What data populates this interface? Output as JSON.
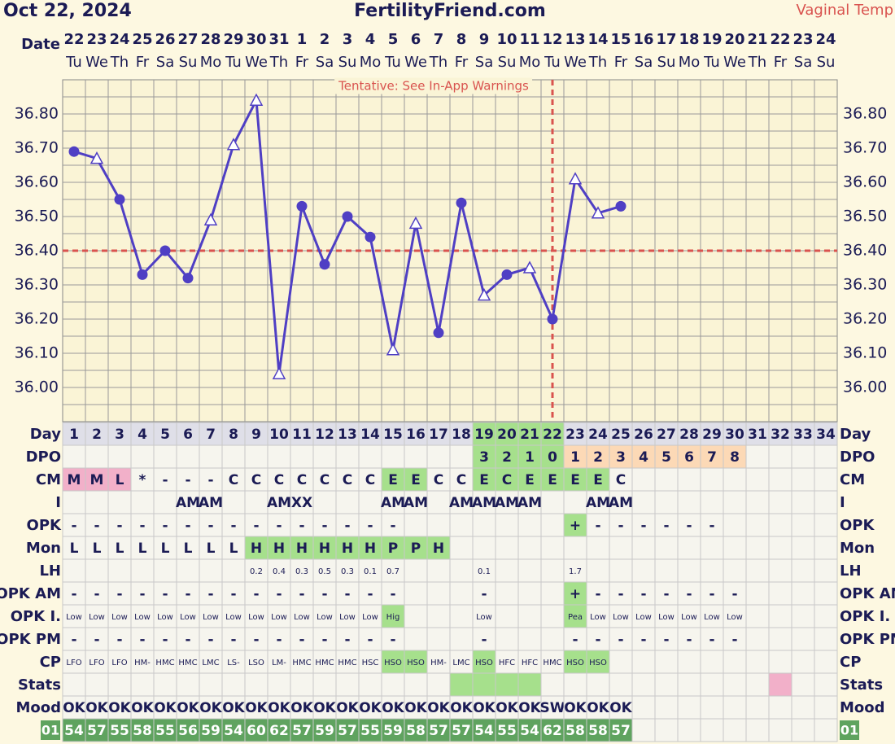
{
  "header": {
    "date": "Oct 22, 2024",
    "site": "FertilityFriend.com",
    "mode": "Vaginal Temp",
    "date_label": "Date"
  },
  "chart_data": {
    "type": "line",
    "annotation": "Tentative: See In-App Warnings",
    "categories": [
      "22",
      "23",
      "24",
      "25",
      "26",
      "27",
      "28",
      "29",
      "30",
      "31",
      "1",
      "2",
      "3",
      "4",
      "5",
      "6",
      "7",
      "8",
      "9",
      "10",
      "11",
      "12",
      "13",
      "14",
      "15",
      "16",
      "17",
      "18",
      "19",
      "20",
      "21",
      "22",
      "23",
      "24"
    ],
    "weekdays": [
      "Tu",
      "We",
      "Th",
      "Fr",
      "Sa",
      "Su",
      "Mo",
      "Tu",
      "We",
      "Th",
      "Fr",
      "Sa",
      "Su",
      "Mo",
      "Tu",
      "We",
      "Th",
      "Fr",
      "Sa",
      "Su",
      "Mo",
      "Tu",
      "We",
      "Th",
      "Fr",
      "Sa",
      "Su",
      "Mo",
      "Tu",
      "We",
      "Th",
      "Fr",
      "Sa",
      "Su"
    ],
    "series": [
      {
        "name": "Temperature",
        "color": "#4f3fc4",
        "values": [
          36.69,
          36.67,
          36.55,
          36.33,
          36.4,
          36.32,
          36.49,
          36.71,
          36.84,
          36.04,
          36.53,
          36.36,
          36.5,
          36.44,
          36.11,
          36.48,
          36.16,
          36.54,
          36.27,
          36.33,
          36.35,
          36.2,
          36.61,
          36.51,
          36.53,
          null,
          null,
          null,
          null,
          null,
          null,
          null,
          null,
          null
        ],
        "markers": [
          "circle",
          "triangle",
          "circle",
          "circle",
          "circle",
          "circle",
          "triangle",
          "triangle",
          "triangle",
          "triangle",
          "circle",
          "circle",
          "circle",
          "circle",
          "triangle",
          "triangle",
          "circle",
          "circle",
          "triangle",
          "circle",
          "triangle",
          "circle",
          "triangle",
          "triangle",
          "circle",
          null,
          null,
          null,
          null,
          null,
          null,
          null,
          null,
          null
        ]
      }
    ],
    "ylim": [
      35.9,
      36.9
    ],
    "yticks": [
      {
        "value": 36.0,
        "label": "36.00"
      },
      {
        "value": 36.1,
        "label": "36.10"
      },
      {
        "value": 36.2,
        "label": "36.20"
      },
      {
        "value": 36.3,
        "label": "36.30"
      },
      {
        "value": 36.4,
        "label": "36.40"
      },
      {
        "value": 36.5,
        "label": "36.50"
      },
      {
        "value": 36.6,
        "label": "36.60"
      },
      {
        "value": 36.7,
        "label": "36.70"
      },
      {
        "value": 36.8,
        "label": "36.80"
      }
    ],
    "coverline": 36.4,
    "coverline_color": "#d9534f",
    "ovulation_day": 22,
    "grid": true
  },
  "table": {
    "rows": [
      {
        "label": "Day",
        "fill": "#dfdfe8",
        "cells": [
          "1",
          "2",
          "3",
          "4",
          "5",
          "6",
          "7",
          "8",
          "9",
          "10",
          "11",
          "12",
          "13",
          "14",
          "15",
          "16",
          "17",
          "18",
          "19",
          "20",
          "21",
          "22",
          "23",
          "24",
          "25",
          "26",
          "27",
          "28",
          "29",
          "30",
          "31",
          "32",
          "33",
          "34"
        ],
        "bg": [
          null,
          null,
          null,
          null,
          null,
          null,
          null,
          null,
          null,
          null,
          null,
          null,
          null,
          null,
          null,
          null,
          null,
          null,
          "#a6e08c",
          "#a6e08c",
          "#a6e08c",
          "#a6e08c",
          null,
          null,
          null,
          null,
          null,
          null,
          null,
          null,
          null,
          null,
          null,
          null
        ]
      },
      {
        "label": "DPO",
        "fill": "#f6f5ee",
        "cells": [
          null,
          null,
          null,
          null,
          null,
          null,
          null,
          null,
          null,
          null,
          null,
          null,
          null,
          null,
          null,
          null,
          null,
          null,
          "3",
          "2",
          "1",
          "0",
          "1",
          "2",
          "3",
          "4",
          "5",
          "6",
          "7",
          "8",
          null,
          null,
          null,
          null
        ],
        "bg": [
          null,
          null,
          null,
          null,
          null,
          null,
          null,
          null,
          null,
          null,
          null,
          null,
          null,
          null,
          null,
          null,
          null,
          null,
          "#a6e08c",
          "#a6e08c",
          "#a6e08c",
          "#a6e08c",
          "#fcd9b6",
          "#fcd9b6",
          "#fcd9b6",
          "#fcd9b6",
          "#fcd9b6",
          "#fcd9b6",
          "#fcd9b6",
          "#fcd9b6",
          null,
          null,
          null,
          null
        ]
      },
      {
        "label": "CM",
        "fill": "#f6f5ee",
        "cells": [
          "M",
          "M",
          "L",
          "*",
          "-",
          "-",
          "-",
          "C",
          "C",
          "C",
          "C",
          "C",
          "C",
          "C",
          "E",
          "E",
          "C",
          "C",
          "E",
          "C",
          "E",
          "E",
          "E",
          "E",
          "C",
          null,
          null,
          null,
          null,
          null,
          null,
          null,
          null,
          null
        ],
        "bg": [
          "#f2b0c9",
          "#f2b0c9",
          "#f2b0c9",
          null,
          null,
          null,
          null,
          null,
          null,
          null,
          null,
          null,
          null,
          null,
          "#a6e08c",
          "#a6e08c",
          null,
          null,
          "#a6e08c",
          "#a6e08c",
          "#a6e08c",
          "#a6e08c",
          "#a6e08c",
          "#a6e08c",
          null,
          null,
          null,
          null,
          null,
          null,
          null,
          null,
          null,
          null
        ]
      },
      {
        "label": "I",
        "fill": "#f6f5ee",
        "cells": [
          null,
          null,
          null,
          null,
          null,
          "AM",
          "AM",
          null,
          null,
          "AM",
          "XX",
          null,
          null,
          null,
          "AM",
          "AM",
          null,
          "AM",
          "AM",
          "AM",
          "AM",
          null,
          null,
          "AM",
          "AM",
          null,
          null,
          null,
          null,
          null,
          null,
          null,
          null,
          null
        ]
      },
      {
        "label": "OPK",
        "fill": "#f6f5ee",
        "cells": [
          "-",
          "-",
          "-",
          "-",
          "-",
          "-",
          "-",
          "-",
          "-",
          "-",
          "-",
          "-",
          "-",
          "-",
          "-",
          null,
          null,
          null,
          null,
          null,
          null,
          null,
          "+",
          "-",
          "-",
          "-",
          "-",
          "-",
          "-",
          null,
          null,
          null,
          null,
          null
        ],
        "bg": [
          null,
          null,
          null,
          null,
          null,
          null,
          null,
          null,
          null,
          null,
          null,
          null,
          null,
          null,
          null,
          null,
          null,
          null,
          null,
          null,
          null,
          null,
          "#a6e08c",
          null,
          null,
          null,
          null,
          null,
          null,
          null,
          null,
          null,
          null,
          null
        ]
      },
      {
        "label": "Mon",
        "fill": "#f6f5ee",
        "cells": [
          "L",
          "L",
          "L",
          "L",
          "L",
          "L",
          "L",
          "L",
          "H",
          "H",
          "H",
          "H",
          "H",
          "H",
          "P",
          "P",
          "H",
          null,
          null,
          null,
          null,
          null,
          null,
          null,
          null,
          null,
          null,
          null,
          null,
          null,
          null,
          null,
          null,
          null
        ],
        "bg": [
          null,
          null,
          null,
          null,
          null,
          null,
          null,
          null,
          "#a6e08c",
          "#a6e08c",
          "#a6e08c",
          "#a6e08c",
          "#a6e08c",
          "#a6e08c",
          "#a6e08c",
          "#a6e08c",
          "#a6e08c",
          null,
          null,
          null,
          null,
          null,
          null,
          null,
          null,
          null,
          null,
          null,
          null,
          null,
          null,
          null,
          null,
          null
        ]
      },
      {
        "label": "LH",
        "fill": "#f6f5ee",
        "small": true,
        "cells": [
          null,
          null,
          null,
          null,
          null,
          null,
          null,
          null,
          "0.2",
          "0.4",
          "0.3",
          "0.5",
          "0.3",
          "0.1",
          "0.7",
          null,
          null,
          null,
          "0.1",
          null,
          null,
          null,
          "1.7",
          null,
          null,
          null,
          null,
          null,
          null,
          null,
          null,
          null,
          null,
          null
        ]
      },
      {
        "label": "OPK AM",
        "fill": "#f6f5ee",
        "cells": [
          "-",
          "-",
          "-",
          "-",
          "-",
          "-",
          "-",
          "-",
          "-",
          "-",
          "-",
          "-",
          "-",
          "-",
          "-",
          null,
          null,
          null,
          "-",
          null,
          null,
          null,
          "+",
          "-",
          "-",
          "-",
          "-",
          "-",
          "-",
          "-",
          null,
          null,
          null,
          null
        ],
        "bg": [
          null,
          null,
          null,
          null,
          null,
          null,
          null,
          null,
          null,
          null,
          null,
          null,
          null,
          null,
          null,
          null,
          null,
          null,
          null,
          null,
          null,
          null,
          "#a6e08c",
          null,
          null,
          null,
          null,
          null,
          null,
          null,
          null,
          null,
          null,
          null
        ]
      },
      {
        "label": "OPK I.",
        "fill": "#f6f5ee",
        "small": true,
        "cells": [
          "Low",
          "Low",
          "Low",
          "Low",
          "Low",
          "Low",
          "Low",
          "Low",
          "Low",
          "Low",
          "Low",
          "Low",
          "Low",
          "Low",
          "Hig",
          null,
          null,
          null,
          "Low",
          null,
          null,
          null,
          "Pea",
          "Low",
          "Low",
          "Low",
          "Low",
          "Low",
          "Low",
          "Low",
          null,
          null,
          null,
          null
        ],
        "bg": [
          null,
          null,
          null,
          null,
          null,
          null,
          null,
          null,
          null,
          null,
          null,
          null,
          null,
          null,
          "#a6e08c",
          null,
          null,
          null,
          null,
          null,
          null,
          null,
          "#a6e08c",
          null,
          null,
          null,
          null,
          null,
          null,
          null,
          null,
          null,
          null,
          null
        ]
      },
      {
        "label": "OPK PM",
        "fill": "#f6f5ee",
        "cells": [
          "-",
          "-",
          "-",
          "-",
          "-",
          "-",
          "-",
          "-",
          "-",
          "-",
          "-",
          "-",
          "-",
          "-",
          "-",
          null,
          null,
          null,
          "-",
          null,
          null,
          null,
          "-",
          "-",
          "-",
          "-",
          "-",
          "-",
          "-",
          "-",
          null,
          null,
          null,
          null
        ]
      },
      {
        "label": "CP",
        "fill": "#f6f5ee",
        "small": true,
        "cells": [
          "LFO",
          "LFO",
          "LFO",
          "HM-",
          "HMC",
          "HMC",
          "LMC",
          "LS-",
          "LSO",
          "LM-",
          "HMC",
          "HMC",
          "HMC",
          "HSC",
          "HSO",
          "HSO",
          "HM-",
          "LMC",
          "HSO",
          "HFC",
          "HFC",
          "HMC",
          "HSO",
          "HSO",
          null,
          null,
          null,
          null,
          null,
          null,
          null,
          null,
          null,
          null
        ],
        "bg": [
          null,
          null,
          null,
          null,
          null,
          null,
          null,
          null,
          null,
          null,
          null,
          null,
          null,
          null,
          "#a6e08c",
          "#a6e08c",
          null,
          null,
          "#a6e08c",
          null,
          null,
          null,
          "#a6e08c",
          "#a6e08c",
          null,
          null,
          null,
          null,
          null,
          null,
          null,
          null,
          null,
          null
        ]
      },
      {
        "label": "Stats",
        "fill": "#f6f5ee",
        "cells": [
          null,
          null,
          null,
          null,
          null,
          null,
          null,
          null,
          null,
          null,
          null,
          null,
          null,
          null,
          null,
          null,
          null,
          null,
          null,
          null,
          null,
          null,
          null,
          null,
          null,
          null,
          null,
          null,
          null,
          null,
          null,
          null,
          null,
          null
        ],
        "bg": [
          null,
          null,
          null,
          null,
          null,
          null,
          null,
          null,
          null,
          null,
          null,
          null,
          null,
          null,
          null,
          null,
          null,
          "#a6e08c",
          "#a6e08c",
          "#a6e08c",
          "#a6e08c",
          null,
          null,
          null,
          null,
          null,
          null,
          null,
          null,
          null,
          null,
          "#f2b0c9",
          null,
          null
        ]
      },
      {
        "label": "Mood",
        "fill": "#f6f5ee",
        "cells": [
          "OK",
          "OK",
          "OK",
          "OK",
          "OK",
          "OK",
          "OK",
          "OK",
          "OK",
          "OK",
          "OK",
          "OK",
          "OK",
          "OK",
          "OK",
          "OK",
          "OK",
          "OK",
          "OK",
          "OK",
          "OK",
          "SW",
          "OK",
          "OK",
          "OK",
          null,
          null,
          null,
          null,
          null,
          null,
          null,
          null,
          null
        ]
      },
      {
        "label": "01",
        "fill": "#f6f5ee",
        "label_bg": "#5fa35f",
        "text_color": "#ffffff",
        "cells": [
          "54",
          "57",
          "55",
          "58",
          "55",
          "56",
          "59",
          "54",
          "60",
          "62",
          "57",
          "59",
          "57",
          "55",
          "59",
          "58",
          "57",
          "57",
          "54",
          "55",
          "54",
          "62",
          "58",
          "58",
          "57",
          null,
          null,
          null,
          null,
          null,
          null,
          null,
          null,
          null
        ],
        "bg": [
          "#5fa35f",
          "#5fa35f",
          "#5fa35f",
          "#5fa35f",
          "#5fa35f",
          "#5fa35f",
          "#5fa35f",
          "#5fa35f",
          "#5fa35f",
          "#5fa35f",
          "#5fa35f",
          "#5fa35f",
          "#5fa35f",
          "#5fa35f",
          "#5fa35f",
          "#5fa35f",
          "#5fa35f",
          "#5fa35f",
          "#5fa35f",
          "#5fa35f",
          "#5fa35f",
          "#5fa35f",
          "#5fa35f",
          "#5fa35f",
          "#5fa35f",
          null,
          null,
          null,
          null,
          null,
          null,
          null,
          null,
          null
        ]
      }
    ]
  }
}
